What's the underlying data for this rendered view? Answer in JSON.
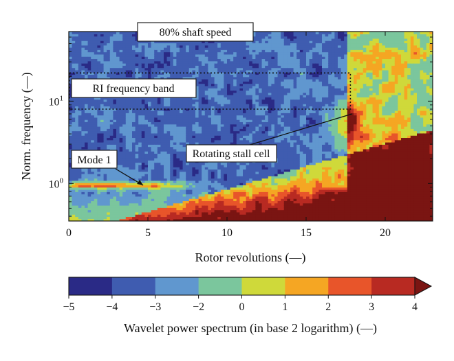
{
  "chart_data": {
    "type": "heatmap",
    "title": "80% shaft speed",
    "xlabel": "Rotor revolutions (—)",
    "ylabel": "Norm. frequency (—)",
    "xlim": [
      0,
      23
    ],
    "ylim": [
      0.35,
      70
    ],
    "y_scale": "log",
    "x_ticks": [
      0,
      5,
      10,
      15,
      20
    ],
    "y_ticks": [
      {
        "value": 1,
        "base": "10",
        "exp": "0"
      },
      {
        "value": 10,
        "base": "10",
        "exp": "1"
      }
    ],
    "annotations": [
      {
        "label": "RI frequency band",
        "x_range": [
          0,
          17.8
        ],
        "y_range": [
          8,
          22
        ]
      },
      {
        "label": "Rotating stall cell",
        "arrow_to": [
          17.9,
          7
        ]
      },
      {
        "label": "Mode 1",
        "arrow_to": [
          4.7,
          0.95
        ]
      }
    ],
    "colorbar": {
      "label": "Wavelet power spectrum (in base 2 logarithm) (—)",
      "tick_labels": [
        "−5",
        "−4",
        "−3",
        "−2",
        "0",
        "1",
        "2",
        "3",
        "4"
      ],
      "levels": [
        -5,
        -4,
        -3,
        -2,
        0,
        1,
        2,
        3,
        4
      ],
      "colors": [
        "#2a2a86",
        "#3f5cb0",
        "#6097cf",
        "#7bc69d",
        "#cfd93a",
        "#f5a623",
        "#e8552a",
        "#b82a22",
        "#7a1512"
      ],
      "below_min_color": "#ffffff"
    }
  }
}
